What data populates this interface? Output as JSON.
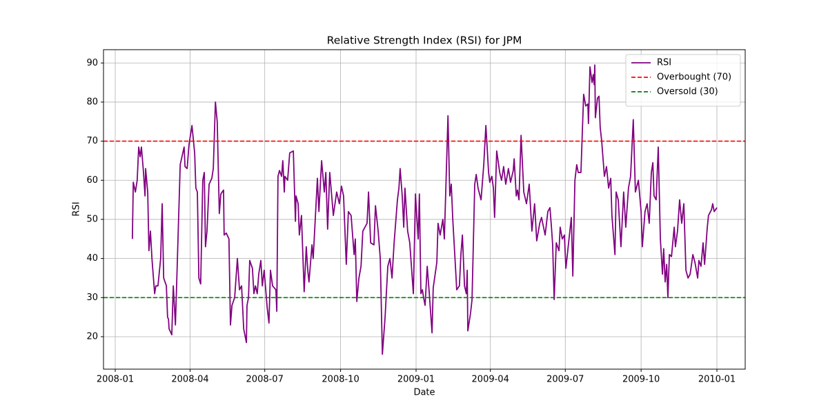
{
  "chart_data": {
    "type": "line",
    "title": "Relative Strength Index (RSI) for JPM",
    "x_label": "Date",
    "y_label": "RSI",
    "x": [
      2008.057,
      2008.06,
      2008.067,
      2008.073,
      2008.078,
      2008.083,
      2008.087,
      2008.094,
      2008.099,
      2008.101,
      2008.108,
      2008.112,
      2008.117,
      2008.122,
      2008.131,
      2008.135,
      2008.142,
      2008.151,
      2008.156,
      2008.161,
      2008.17,
      2008.174,
      2008.177,
      2008.179,
      2008.188,
      2008.193,
      2008.2,
      2008.204,
      2008.216,
      2008.229,
      2008.232,
      2008.239,
      2008.245,
      2008.255,
      2008.264,
      2008.268,
      2008.273,
      2008.278,
      2008.284,
      2008.291,
      2008.296,
      2008.3,
      2008.305,
      2008.312,
      2008.321,
      2008.326,
      2008.333,
      2008.339,
      2008.346,
      2008.351,
      2008.36,
      2008.362,
      2008.369,
      2008.378,
      2008.383,
      2008.388,
      2008.397,
      2008.406,
      2008.413,
      2008.42,
      2008.427,
      2008.436,
      2008.438,
      2008.443,
      2008.447,
      2008.456,
      2008.461,
      2008.466,
      2008.472,
      2008.477,
      2008.484,
      2008.489,
      2008.495,
      2008.505,
      2008.511,
      2008.516,
      2008.523,
      2008.534,
      2008.537,
      2008.541,
      2008.546,
      2008.553,
      2008.557,
      2008.562,
      2008.564,
      2008.573,
      2008.58,
      2008.592,
      2008.599,
      2008.601,
      2008.608,
      2008.612,
      2008.619,
      2008.628,
      2008.635,
      2008.64,
      2008.644,
      2008.654,
      2008.658,
      2008.672,
      2008.677,
      2008.686,
      2008.695,
      2008.7,
      2008.706,
      2008.713,
      2008.725,
      2008.736,
      2008.745,
      2008.752,
      2008.759,
      2008.768,
      2008.775,
      2008.784,
      2008.794,
      2008.798,
      2008.803,
      2008.81,
      2008.817,
      2008.823,
      2008.837,
      2008.842,
      2008.849,
      2008.86,
      2008.865,
      2008.874,
      2008.881,
      2008.888,
      2008.897,
      2008.906,
      2008.913,
      2008.92,
      2008.927,
      2008.933,
      2008.938,
      2008.943,
      2008.947,
      2008.954,
      2008.959,
      2008.963,
      2008.972,
      2008.979,
      2008.991,
      2008.998,
      2009.007,
      2009.011,
      2009.016,
      2009.021,
      2009.025,
      2009.03,
      2009.037,
      2009.044,
      2009.053,
      2009.057,
      2009.069,
      2009.073,
      2009.08,
      2009.089,
      2009.094,
      2009.106,
      2009.112,
      2009.117,
      2009.122,
      2009.133,
      2009.135,
      2009.144,
      2009.149,
      2009.154,
      2009.161,
      2009.167,
      2009.17,
      2009.172,
      2009.181,
      2009.186,
      2009.195,
      2009.2,
      2009.206,
      2009.216,
      2009.225,
      2009.232,
      2009.241,
      2009.245,
      2009.252,
      2009.257,
      2009.261,
      2009.268,
      2009.278,
      2009.284,
      2009.291,
      2009.298,
      2009.307,
      2009.314,
      2009.323,
      2009.326,
      2009.333,
      2009.337,
      2009.342,
      2009.349,
      2009.358,
      2009.367,
      2009.376,
      2009.385,
      2009.394,
      2009.401,
      2009.411,
      2009.417,
      2009.429,
      2009.438,
      2009.445,
      2009.45,
      2009.454,
      2009.459,
      2009.466,
      2009.475,
      2009.479,
      2009.486,
      2009.493,
      2009.498,
      2009.507,
      2009.516,
      2009.521,
      2009.528,
      2009.534,
      2009.539,
      2009.548,
      2009.557,
      2009.564,
      2009.571,
      2009.573,
      2009.578,
      2009.585,
      2009.589,
      2009.592,
      2009.594,
      2009.596,
      2009.603,
      2009.608,
      2009.612,
      2009.617,
      2009.626,
      2009.633,
      2009.64,
      2009.647,
      2009.651,
      2009.661,
      2009.665,
      2009.672,
      2009.681,
      2009.69,
      2009.697,
      2009.706,
      2009.713,
      2009.722,
      2009.729,
      2009.739,
      2009.748,
      2009.752,
      2009.761,
      2009.768,
      2009.775,
      2009.782,
      2009.787,
      2009.791,
      2009.798,
      2009.805,
      2009.812,
      2009.819,
      2009.823,
      2009.828,
      2009.833,
      2009.837,
      2009.842,
      2009.849,
      2009.858,
      2009.862,
      2009.869,
      2009.876,
      2009.883,
      2009.89,
      2009.897,
      2009.904,
      2009.911,
      2009.92,
      2009.927,
      2009.936,
      2009.94,
      2009.947,
      2009.954,
      2009.959,
      2009.968,
      2009.972,
      2009.982,
      2009.986,
      2009.991,
      2010.0
    ],
    "series": [
      {
        "name": "RSI",
        "color": "purple",
        "values": [
          45,
          59.5,
          57,
          60,
          68.5,
          66,
          68.5,
          62,
          56,
          63,
          57,
          42,
          47,
          40,
          31,
          33,
          33,
          40,
          54,
          35,
          33,
          25,
          24.5,
          22,
          20.5,
          33,
          23,
          33,
          64,
          68.5,
          63.5,
          63,
          69,
          74,
          67,
          58,
          57,
          35,
          33.5,
          60,
          62,
          43,
          47,
          59,
          60.5,
          63,
          80,
          75,
          51.5,
          56.5,
          57.5,
          46,
          46.5,
          45,
          23,
          28,
          30,
          40,
          32,
          33,
          22,
          18.5,
          28,
          30,
          39.5,
          37.5,
          31,
          33,
          31,
          36,
          39.5,
          33,
          37,
          27.5,
          23.5,
          37,
          33,
          32,
          26.5,
          61,
          62.5,
          61,
          65,
          57,
          61,
          60,
          67,
          67.5,
          49.5,
          56,
          54,
          46,
          51,
          31.5,
          43,
          37,
          34,
          43.5,
          40,
          60.5,
          52,
          65,
          57,
          62,
          47.5,
          62,
          51,
          57,
          54,
          58.5,
          56,
          38.5,
          52,
          51,
          41,
          45,
          29,
          35,
          38,
          47,
          49,
          57,
          44,
          43.5,
          53.5,
          47,
          40,
          15.5,
          25,
          38,
          40,
          35,
          44,
          50,
          55,
          58,
          63,
          56,
          48,
          58,
          47,
          44,
          31,
          56.5,
          45,
          56.5,
          31,
          32,
          30,
          28,
          38,
          31,
          21,
          32.5,
          39,
          49,
          46,
          50,
          45,
          76.5,
          56,
          59,
          50,
          35,
          32,
          33,
          41,
          46,
          33,
          31,
          37,
          21.5,
          26,
          29.5,
          59,
          61.5,
          58,
          55,
          64,
          74,
          62,
          59.5,
          61,
          58,
          50.5,
          67.5,
          62,
          60,
          63.5,
          59,
          63,
          59.5,
          62.5,
          65.5,
          56,
          57.5,
          55,
          71.5,
          57,
          54,
          59,
          47,
          54,
          44.5,
          49,
          50.5,
          46,
          52,
          53,
          48,
          43.5,
          29.5,
          44,
          42,
          48,
          45,
          46,
          37.5,
          44,
          50.5,
          35.5,
          60,
          64,
          62,
          62,
          82,
          79,
          79.5,
          74.5,
          89,
          85,
          87,
          84.5,
          89.5,
          76,
          81,
          81.5,
          73.5,
          70,
          61,
          63.5,
          58,
          60.5,
          51,
          41,
          57,
          55,
          43,
          57,
          48,
          58,
          61,
          75.5,
          57,
          60,
          52,
          43,
          52,
          54,
          49,
          62,
          64.5,
          56,
          55,
          68.5,
          45,
          36,
          42.5,
          34,
          38.5,
          30,
          41,
          40.5,
          48,
          43,
          47,
          55,
          49,
          54,
          37,
          35,
          36,
          41,
          39,
          35,
          39.5,
          38,
          44,
          38.5,
          48,
          51,
          52.5,
          54,
          52,
          53
        ]
      }
    ],
    "hlines": [
      {
        "name": "Overbought (70)",
        "value": 70,
        "color": "red"
      },
      {
        "name": "Oversold (30)",
        "value": 30,
        "color": "green"
      }
    ],
    "xlim": [
      2007.961,
      2010.094
    ],
    "xticks": [
      {
        "value": 2008.0,
        "label": "2008-01"
      },
      {
        "value": 2008.249,
        "label": "2008-04"
      },
      {
        "value": 2008.497,
        "label": "2008-07"
      },
      {
        "value": 2008.749,
        "label": "2008-10"
      },
      {
        "value": 2009.0,
        "label": "2009-01"
      },
      {
        "value": 2009.247,
        "label": "2009-04"
      },
      {
        "value": 2009.496,
        "label": "2009-07"
      },
      {
        "value": 2009.748,
        "label": "2009-10"
      },
      {
        "value": 2010.0,
        "label": "2010-01"
      }
    ],
    "ylim": [
      11.7,
      93.4
    ],
    "yticks": [
      20,
      30,
      40,
      50,
      60,
      70,
      80,
      90
    ],
    "grid": true,
    "legend": "upper right"
  }
}
